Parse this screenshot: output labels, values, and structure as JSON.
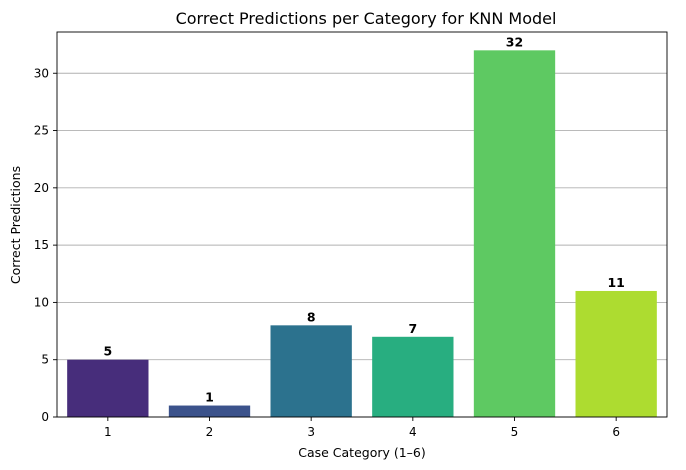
{
  "chart_data": {
    "type": "bar",
    "title": "Correct Predictions per Category for KNN Model",
    "xlabel": "Case Category (1–6)",
    "ylabel": "Correct Predictions",
    "categories": [
      "1",
      "2",
      "3",
      "4",
      "5",
      "6"
    ],
    "values": [
      5,
      1,
      8,
      7,
      32,
      11
    ],
    "data_labels": [
      "5",
      "1",
      "8",
      "7",
      "32",
      "11"
    ],
    "ylim": [
      0,
      33.6
    ],
    "yticks": [
      0,
      5,
      10,
      15,
      20,
      25,
      30
    ],
    "ytick_labels": [
      "0",
      "5",
      "10",
      "15",
      "20",
      "25",
      "30"
    ],
    "grid": "y-axis",
    "colors": [
      "#472d7b",
      "#3b528b",
      "#2c728e",
      "#28ae80",
      "#5ec962",
      "#addc30"
    ]
  }
}
